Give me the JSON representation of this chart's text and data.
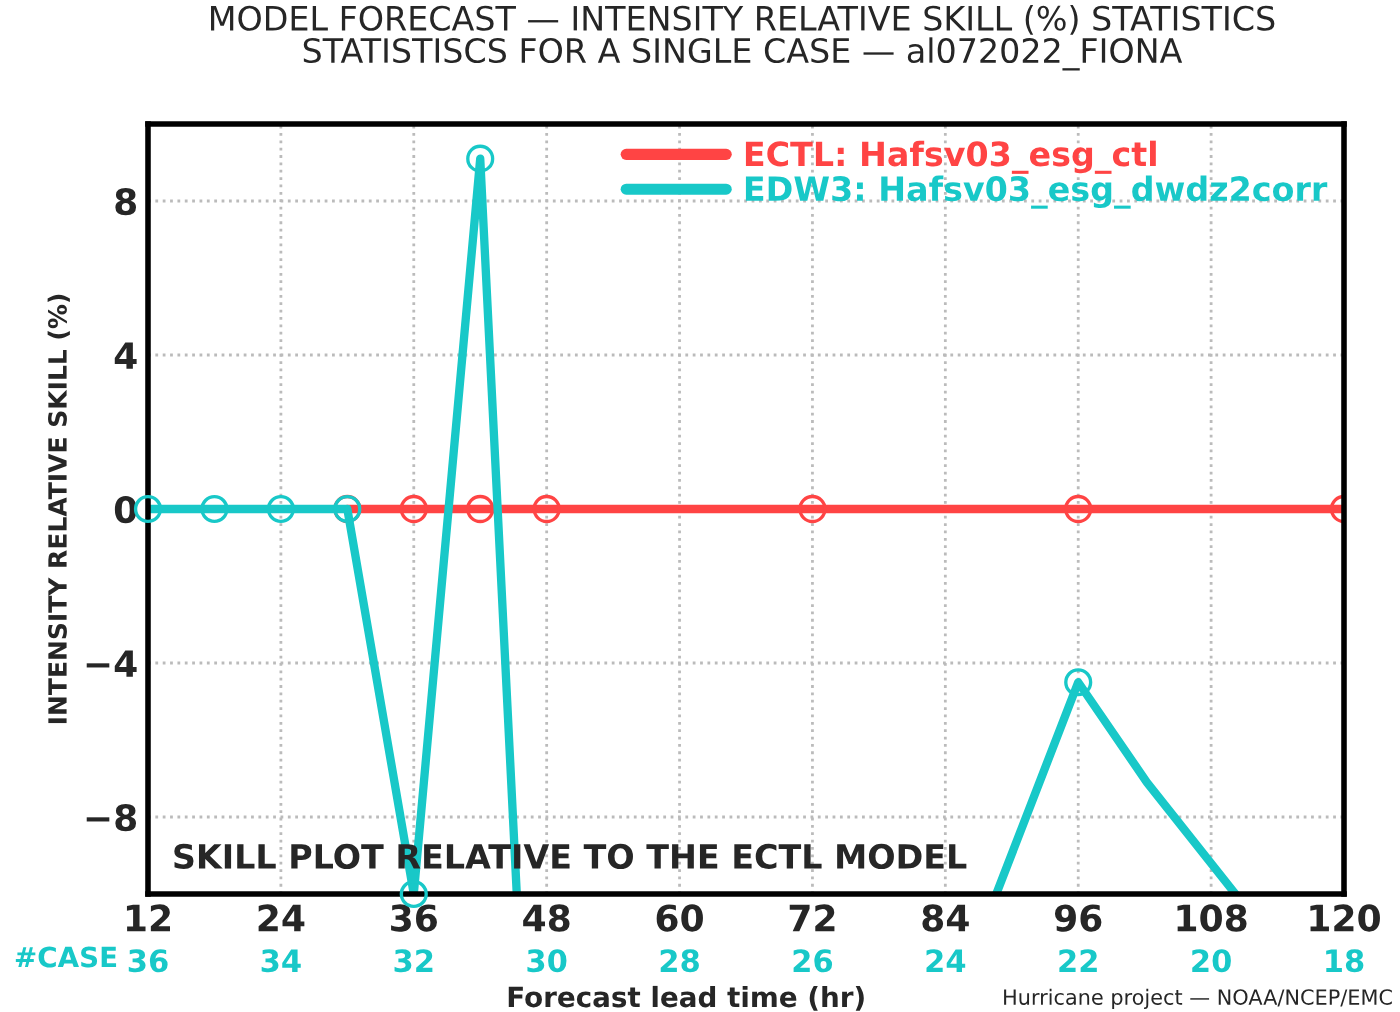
{
  "chart_data": {
    "type": "line",
    "title": "MODEL FORECAST — INTENSITY RELATIVE SKILL (%) STATISTICS\nSTATISTISCS FOR A SINGLE CASE — al072022_FIONA",
    "xlabel": "Forecast lead time (hr)",
    "ylabel": "INTENSITY RELATIVE SKILL (%)",
    "series": [
      {
        "name": "ECTL: Hafsv03_esg_ctl",
        "color": "#ff4444",
        "marker": "circle",
        "x": [
          30,
          36,
          42,
          48,
          72,
          96,
          120
        ],
        "values": [
          0,
          0,
          0,
          0,
          0,
          0,
          0
        ]
      },
      {
        "name": "EDW3: Hafsv03_esg_dwdz2corr",
        "color": "#18c8c8",
        "marker": "none",
        "x": [
          12,
          18,
          24,
          30,
          36,
          42,
          45.3,
          null,
          88.6,
          96,
          102.2,
          110.2
        ],
        "values": [
          0,
          0,
          0,
          0,
          -10,
          9.1,
          -10,
          null,
          -10,
          -4.5,
          -7.1,
          -10
        ]
      },
      {
        "type": "scatter",
        "color": "#18c8c8",
        "marker": "circle",
        "x": [
          12,
          18,
          24,
          30,
          36,
          42,
          96
        ],
        "values": [
          0,
          0,
          0,
          0,
          -10,
          9.1,
          -4.5
        ]
      }
    ],
    "xlim": [
      12,
      120
    ],
    "xticks": [
      12,
      24,
      36,
      48,
      60,
      72,
      84,
      96,
      108,
      120
    ],
    "ylim": [
      -10,
      10
    ],
    "yticks": [
      {
        "value": -10,
        "label": null
      },
      {
        "value": -8,
        "label": "−8"
      },
      {
        "value": -4,
        "label": "−4"
      },
      0,
      4,
      8,
      {
        "value": 10,
        "label": null
      }
    ],
    "grid": true,
    "legend": "top right",
    "annotations": [
      "SKILL PLOT RELATIVE TO THE ECTL MODEL",
      "#CASE",
      "36",
      "34",
      "32",
      "30",
      "28",
      "26",
      "24",
      "22",
      "20",
      "18",
      "Hurricane project — NOAA/NCEP/EMC"
    ]
  }
}
